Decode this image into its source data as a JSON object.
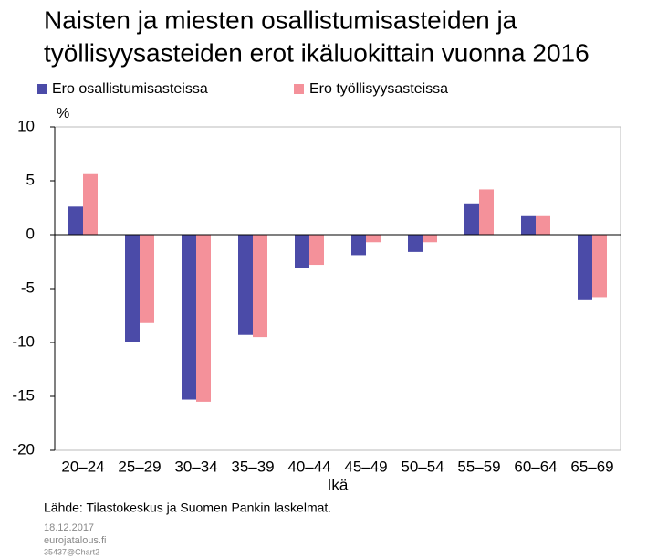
{
  "chart_data": {
    "type": "bar",
    "title": [
      "Naisten ja miesten osallistumisasteiden ja",
      "työllisyysasteiden  erot ikäluokittain vuonna 2016"
    ],
    "y_unit": "%",
    "x_label": "Ikä",
    "categories": [
      "20–24",
      "25–29",
      "30–34",
      "35–39",
      "40–44",
      "45–49",
      "50–54",
      "55–59",
      "60–64",
      "65–69"
    ],
    "series": [
      {
        "name": "Ero osallistumisasteissa",
        "color": "#4b4ba8",
        "values": [
          2.6,
          -10.0,
          -15.3,
          -9.3,
          -3.1,
          -1.9,
          -1.6,
          2.9,
          1.8,
          -6.0
        ]
      },
      {
        "name": "Ero työllisyysasteissa",
        "color": "#f4919a",
        "values": [
          5.7,
          -8.2,
          -15.5,
          -9.5,
          -2.8,
          -0.7,
          -0.7,
          4.2,
          1.8,
          -5.8
        ]
      }
    ],
    "ylim": [
      -20,
      10
    ],
    "yticks": [
      -20,
      -15,
      -10,
      -5,
      0,
      5,
      10
    ],
    "source": "Lähde: Tilastokeskus ja Suomen Pankin laskelmat.",
    "date": "18.12.2017",
    "publisher": "eurojatalous.fi",
    "chart_id": "35437@Chart2"
  }
}
